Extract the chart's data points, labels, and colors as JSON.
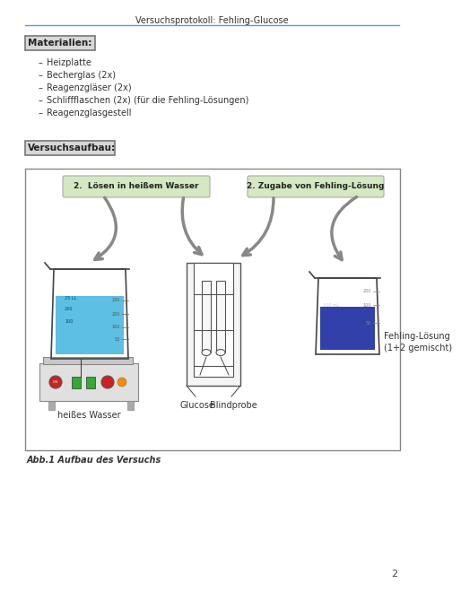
{
  "title": "Versuchsprotokoll: Fehling-Glucose",
  "page_number": "2",
  "materialien_label": "Materialien:",
  "bullet_items": [
    "Heizplatte",
    "Becherglas (2x)",
    "Reagenzgläser (2x)",
    "Schliffflaschen (2x) (für die Fehling-Lösungen)",
    "Reagenzglasgestell"
  ],
  "versuchsaufbau_label": "Versuchsaufbau:",
  "step1_label": "2.  Lösen in heißem Wasser",
  "step2_label": "2. Zugabe von Fehling-Lösung",
  "label_heisses_wasser": "heißes Wasser",
  "label_glucose": "Glucose",
  "label_blindprobe": "Blindprobe",
  "label_fehling_line1": "Fehling-Lösung",
  "label_fehling_line2": "(1+2 gemischt)",
  "caption": "Abb.1 Aufbau des Versuchs",
  "bg_color": "#ffffff",
  "header_line_color": "#5b9bd5",
  "box_bg": "#d8d8d8",
  "box_border": "#888888",
  "step_box_bg": "#d4e8c2",
  "step_box_border": "#aaaaaa",
  "diagram_border": "#888888",
  "water_color": "#4ab8e0",
  "fehling_color": "#1c2ca0",
  "heater_body_color": "#e0e0e0",
  "heater_plate_color": "#c8c8c8",
  "arrow_color": "#888888"
}
